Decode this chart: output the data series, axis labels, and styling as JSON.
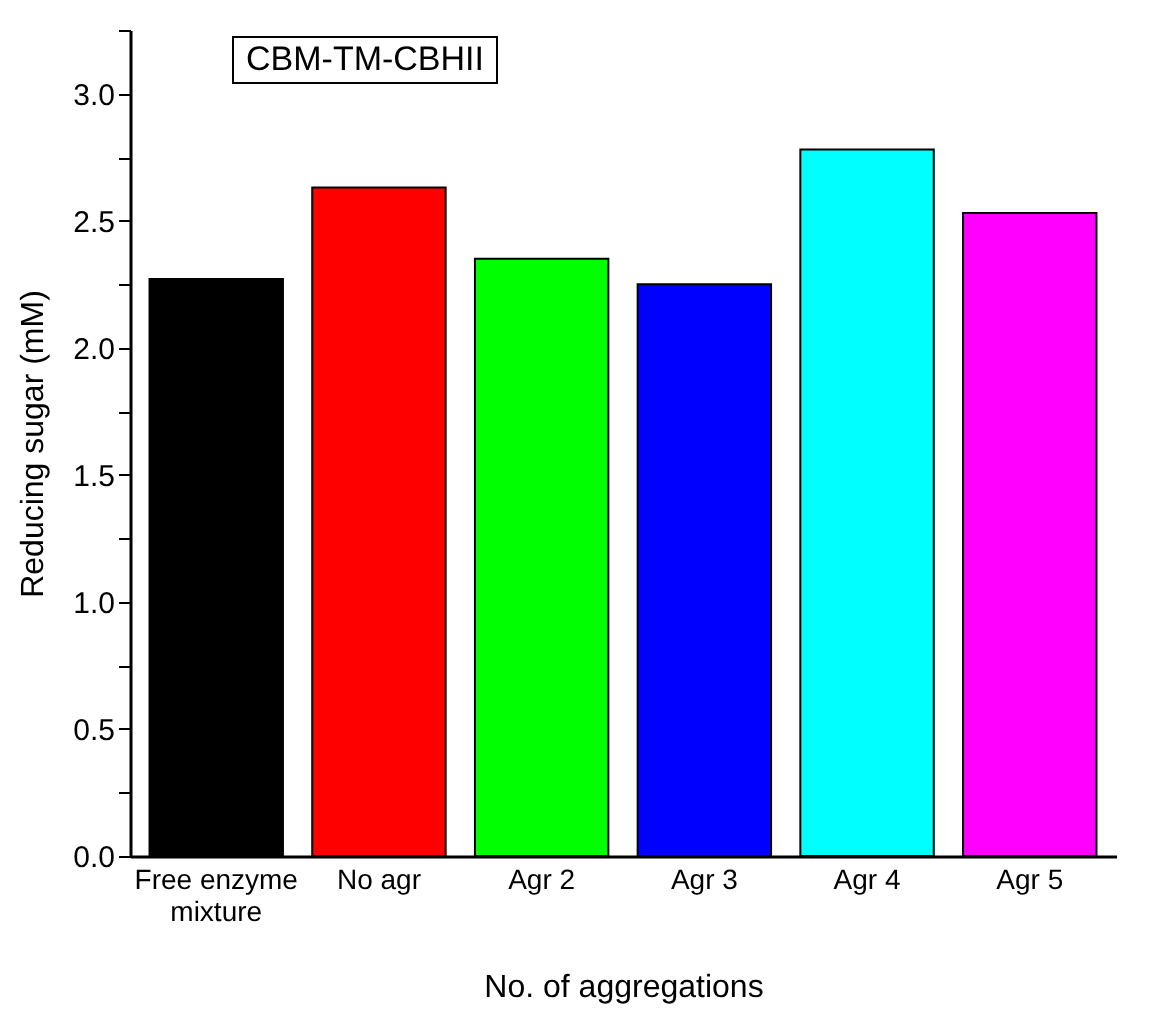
{
  "chart_data": {
    "type": "bar",
    "title": "CBM-TM-CBHII",
    "xlabel": "No. of aggregations",
    "ylabel": "Reducing sugar (mM)",
    "categories": [
      "Free enzyme mixture",
      "No agr",
      "Agr 2",
      "Agr 3",
      "Agr 4",
      "Agr 5"
    ],
    "values": [
      2.27,
      2.63,
      2.35,
      2.25,
      2.78,
      2.53
    ],
    "colors": [
      "#000000",
      "#ff0000",
      "#00ff00",
      "#0000ff",
      "#00ffff",
      "#ff00ff"
    ],
    "ylim": [
      0,
      3.25
    ],
    "yticks": [
      {
        "value": 0,
        "label": "0.0"
      },
      {
        "value": 0.25,
        "label": null
      },
      0.5,
      {
        "value": 0.75,
        "label": null
      },
      {
        "value": 1,
        "label": "1.0"
      },
      {
        "value": 1.25,
        "label": null
      },
      1.5,
      {
        "value": 1.75,
        "label": null
      },
      {
        "value": 2,
        "label": "2.0"
      },
      {
        "value": 2.25,
        "label": null
      },
      2.5,
      {
        "value": 2.75,
        "label": null
      },
      {
        "value": 3,
        "label": "3.0"
      },
      {
        "value": 3.25,
        "label": null
      }
    ],
    "grid": false
  }
}
